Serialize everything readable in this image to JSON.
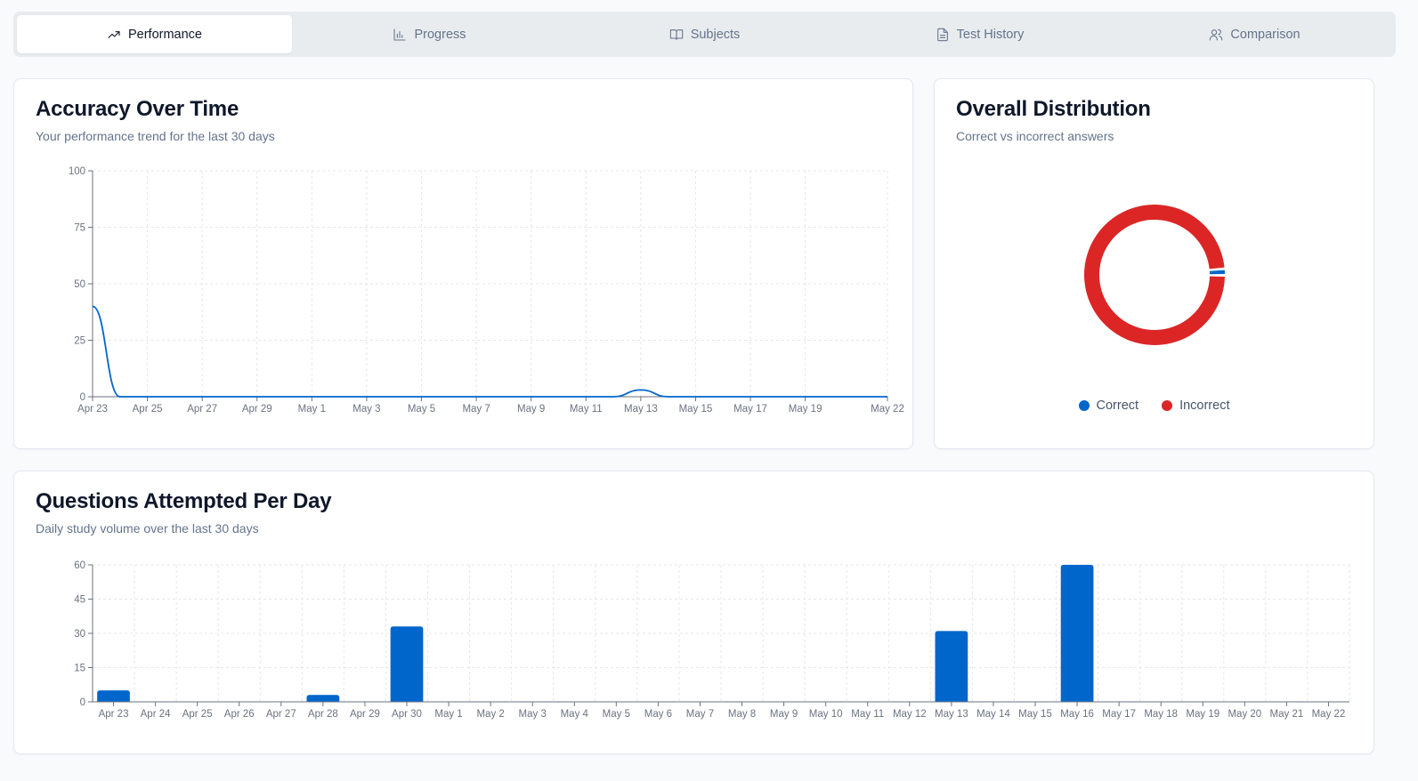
{
  "tabs": [
    {
      "label": "Performance",
      "icon": "trending-up-icon",
      "active": true
    },
    {
      "label": "Progress",
      "icon": "bar-chart-icon",
      "active": false
    },
    {
      "label": "Subjects",
      "icon": "book-open-icon",
      "active": false
    },
    {
      "label": "Test History",
      "icon": "file-text-icon",
      "active": false
    },
    {
      "label": "Comparison",
      "icon": "users-icon",
      "active": false
    }
  ],
  "accuracy": {
    "title": "Accuracy Over Time",
    "subtitle": "Your performance trend for the last 30 days"
  },
  "distribution": {
    "title": "Overall Distribution",
    "subtitle": "Correct vs incorrect answers",
    "legend": [
      {
        "label": "Correct",
        "color": "#0066cc"
      },
      {
        "label": "Incorrect",
        "color": "#dc2626"
      }
    ]
  },
  "questions": {
    "title": "Questions Attempted Per Day",
    "subtitle": "Daily study volume over the last 30 days"
  },
  "chart_data": [
    {
      "type": "line",
      "y_ticks": [
        0,
        25,
        50,
        75,
        100
      ],
      "ylim": [
        0,
        100
      ],
      "x_tick_labels": [
        "Apr 23",
        "Apr 25",
        "Apr 27",
        "Apr 29",
        "May 1",
        "May 3",
        "May 5",
        "May 7",
        "May 9",
        "May 11",
        "May 13",
        "May 15",
        "May 17",
        "May 19",
        "May 22"
      ],
      "x": [
        "Apr 23",
        "Apr 24",
        "Apr 25",
        "Apr 26",
        "Apr 27",
        "Apr 28",
        "Apr 29",
        "Apr 30",
        "May 1",
        "May 2",
        "May 3",
        "May 4",
        "May 5",
        "May 6",
        "May 7",
        "May 8",
        "May 9",
        "May 10",
        "May 11",
        "May 12",
        "May 13",
        "May 14",
        "May 15",
        "May 16",
        "May 17",
        "May 18",
        "May 19",
        "May 20",
        "May 21",
        "May 22"
      ],
      "values": [
        40,
        0,
        0,
        0,
        0,
        0,
        0,
        0,
        0,
        0,
        0,
        0,
        0,
        0,
        0,
        0,
        0,
        0,
        0,
        0,
        3,
        0,
        0,
        0,
        0,
        0,
        0,
        0,
        0,
        0
      ],
      "color": "#0066cc",
      "grid": true
    },
    {
      "type": "pie",
      "style": "donut",
      "slices": [
        {
          "label": "Correct",
          "value": 1.5,
          "color": "#0066cc"
        },
        {
          "label": "Incorrect",
          "value": 98.5,
          "color": "#dc2626"
        }
      ],
      "legend": "bottom"
    },
    {
      "type": "bar",
      "y_ticks": [
        0,
        15,
        30,
        45,
        60
      ],
      "ylim": [
        0,
        60
      ],
      "categories": [
        "Apr 23",
        "Apr 24",
        "Apr 25",
        "Apr 26",
        "Apr 27",
        "Apr 28",
        "Apr 29",
        "Apr 30",
        "May 1",
        "May 2",
        "May 3",
        "May 4",
        "May 5",
        "May 6",
        "May 7",
        "May 8",
        "May 9",
        "May 10",
        "May 11",
        "May 12",
        "May 13",
        "May 14",
        "May 15",
        "May 16",
        "May 17",
        "May 18",
        "May 19",
        "May 20",
        "May 21",
        "May 22"
      ],
      "values": [
        5,
        0,
        0,
        0,
        0,
        3,
        0,
        33,
        0,
        0,
        0,
        0,
        0,
        0,
        0,
        0,
        0,
        0,
        0,
        0,
        31,
        0,
        0,
        60,
        0,
        0,
        0,
        0,
        0,
        0
      ],
      "color": "#0066cc",
      "grid": true
    }
  ]
}
